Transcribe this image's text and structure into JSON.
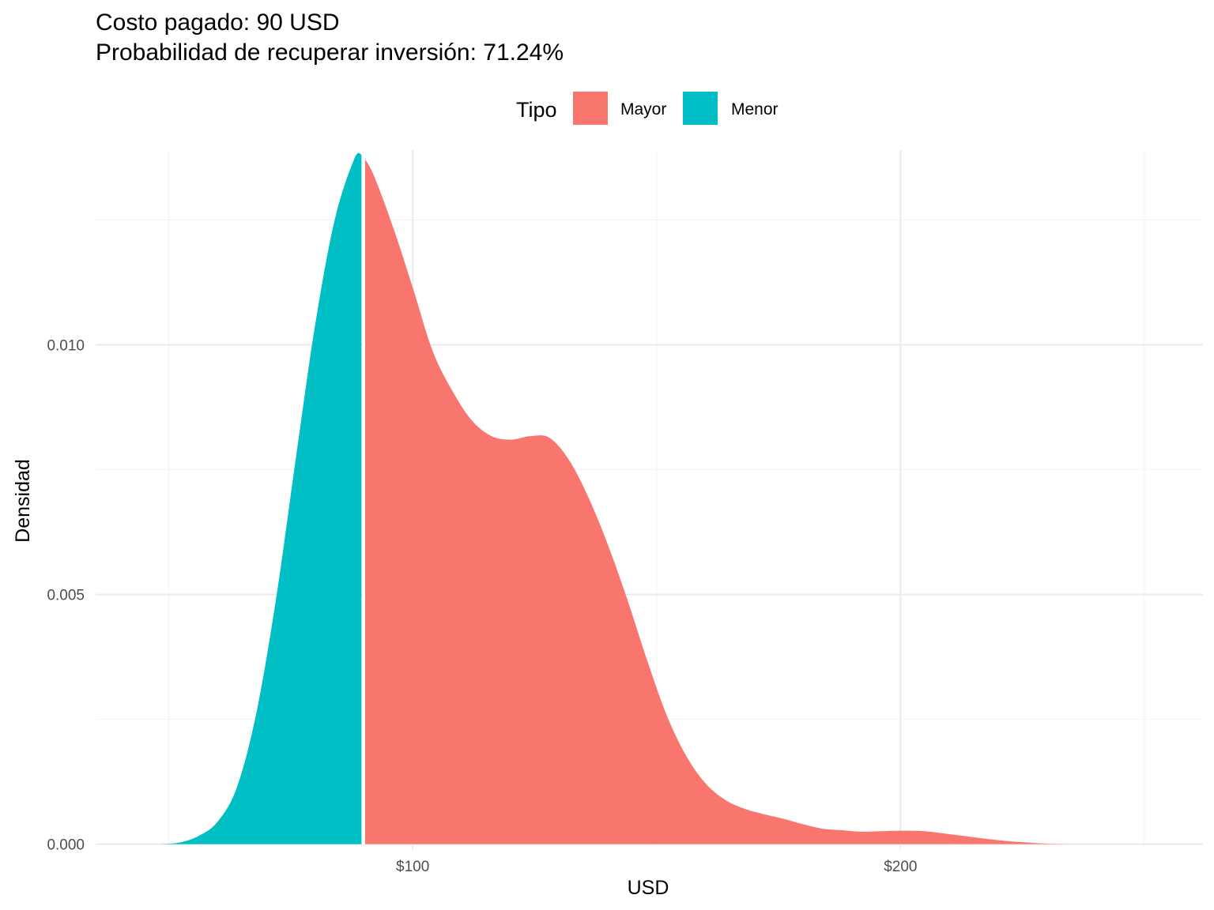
{
  "title": {
    "line1": "Costo pagado: 90 USD",
    "line2": "Probabilidad de recuperar inversión: 71.24%"
  },
  "colors": {
    "mayor": "#F8766D",
    "menor": "#00BFC4",
    "grid_major": "#EBEBEB",
    "grid_minor": "#F3F3F3",
    "cutoff_line": "#FFFFFF"
  },
  "chart_data": {
    "type": "area",
    "title": "Costo pagado: 90 USD\nProbabilidad de recuperar inversión: 71.24%",
    "xlabel": "USD",
    "ylabel": "Densidad",
    "xlim": [
      35,
      262
    ],
    "ylim": [
      -0.0001,
      0.0139
    ],
    "x_ticks": [
      100,
      200
    ],
    "x_tick_labels": [
      "$100",
      "$200"
    ],
    "y_ticks": [
      0.0,
      0.005,
      0.01
    ],
    "y_tick_labels": [
      "0.000",
      "0.005",
      "0.010"
    ],
    "grid": true,
    "cutoff": 90,
    "legend": {
      "title": "Tipo",
      "position": "top",
      "entries": [
        {
          "label": "Mayor",
          "color": "#F8766D"
        },
        {
          "label": "Menor",
          "color": "#00BFC4"
        }
      ]
    },
    "x": [
      48,
      52,
      56,
      60,
      64,
      68,
      72,
      76,
      80,
      84,
      88,
      89.5,
      90,
      92,
      96,
      100,
      104,
      108,
      112,
      116,
      120,
      124,
      128,
      132,
      136,
      140,
      144,
      148,
      152,
      156,
      160,
      164,
      168,
      172,
      176,
      180,
      184,
      188,
      192,
      196,
      200,
      205,
      210,
      215,
      220,
      225,
      230,
      235,
      240,
      245,
      250,
      253
    ],
    "series": [
      {
        "name": "Menor",
        "y": [
          0.0,
          3e-05,
          0.00016,
          0.00045,
          0.00115,
          0.00265,
          0.00492,
          0.0077,
          0.0104,
          0.0125,
          0.01372,
          0.01381,
          null,
          null,
          null,
          null,
          null,
          null,
          null,
          null,
          null,
          null,
          null,
          null,
          null,
          null,
          null,
          null,
          null,
          null,
          null,
          null,
          null,
          null,
          null,
          null,
          null,
          null,
          null,
          null,
          null,
          null,
          null,
          null,
          null,
          null,
          null,
          null,
          null,
          null,
          null,
          null
        ]
      },
      {
        "name": "Mayor",
        "y": [
          null,
          null,
          null,
          null,
          null,
          null,
          null,
          null,
          null,
          null,
          null,
          null,
          0.01375,
          0.0134,
          0.01235,
          0.01115,
          0.0099,
          0.0091,
          0.0085,
          0.00818,
          0.0081,
          0.00817,
          0.00814,
          0.0077,
          0.00695,
          0.006,
          0.0049,
          0.0037,
          0.0026,
          0.00178,
          0.00122,
          0.00089,
          0.00071,
          0.0006,
          0.00051,
          0.0004,
          0.00031,
          0.00028,
          0.00025,
          0.00026,
          0.00027,
          0.00026,
          0.0002,
          0.00014,
          8e-05,
          4e-05,
          1e-05,
          0.0,
          null,
          null,
          null,
          null
        ]
      }
    ]
  }
}
